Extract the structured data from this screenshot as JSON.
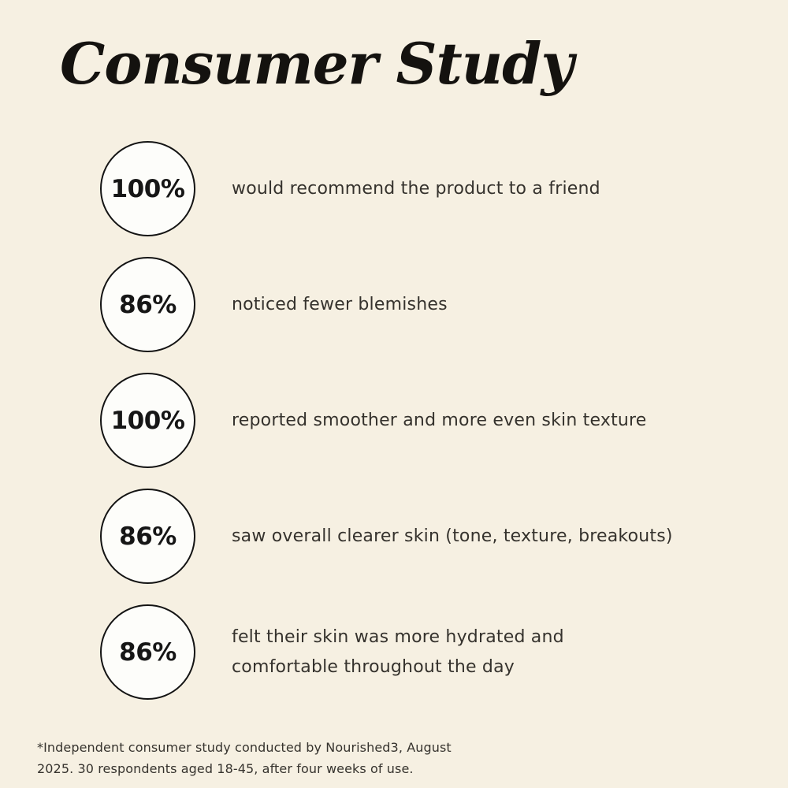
{
  "page": {
    "title": "Consumer Study",
    "background_color": "#f6f0e2",
    "title_color": "#14120f",
    "body_text_color": "#35322d",
    "circle_fill_color": "#fdfdfa",
    "circle_border_color": "#141414"
  },
  "stats": [
    {
      "value": "100%",
      "label": "would recommend the product to a friend"
    },
    {
      "value": "86%",
      "label": "noticed fewer blemishes"
    },
    {
      "value": "100%",
      "label": "reported smoother and more even skin texture"
    },
    {
      "value": "86%",
      "label": "saw overall clearer skin (tone, texture, breakouts)"
    },
    {
      "value": "86%",
      "label": "felt their skin was more hydrated and comfortable throughout the day"
    }
  ],
  "footnote": "*Independent consumer study conducted by Nourished3, August 2025. 30 respondents aged 18-45, after four weeks of use."
}
